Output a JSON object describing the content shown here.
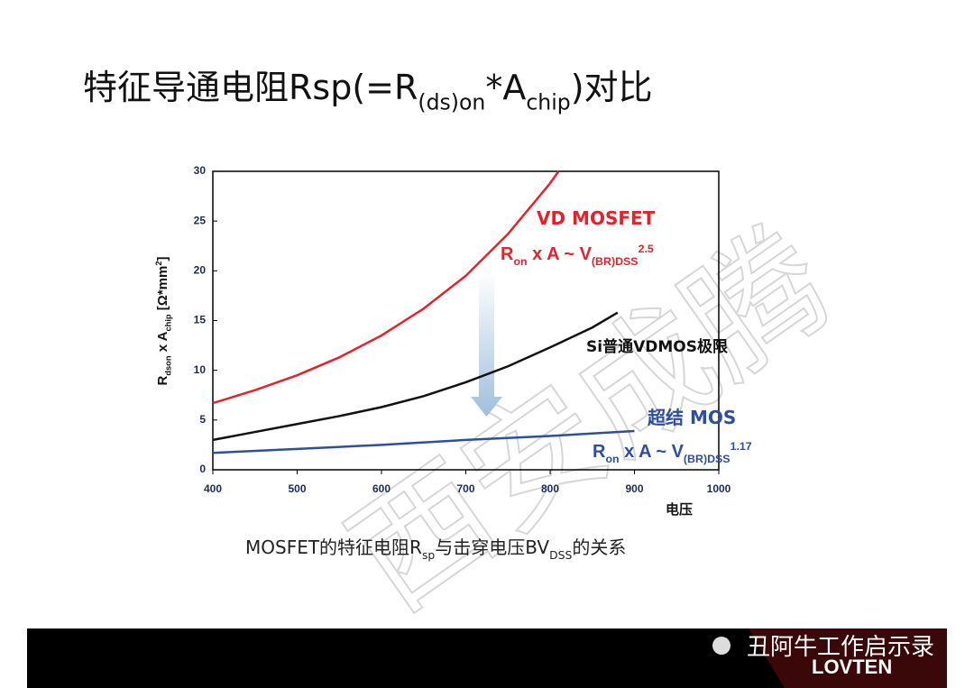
{
  "title": [
    {
      "text": "特征导通电阻Rsp(=R"
    },
    {
      "text": "(ds)on",
      "sub": true
    },
    {
      "text": "*A"
    },
    {
      "text": "chip",
      "sub": true
    },
    {
      "text": ")对比"
    }
  ],
  "chart_data": {
    "type": "line",
    "xlabel": "电压",
    "ylabel": [
      {
        "text": "R"
      },
      {
        "text": "dson",
        "sub": true
      },
      {
        "text": " x A"
      },
      {
        "text": "chip",
        "sub": true
      },
      {
        "text": " [Ω*mm"
      },
      {
        "text": "2",
        "sup": true
      },
      {
        "text": "]"
      }
    ],
    "xlim": [
      400,
      1000
    ],
    "xticks": [
      400,
      500,
      600,
      700,
      800,
      900,
      1000
    ],
    "ylim": [
      0,
      30
    ],
    "yticks": [
      0,
      5,
      10,
      15,
      20,
      25,
      30
    ],
    "series": [
      {
        "name": "VD MOSFET",
        "color": "#e0242c",
        "x": [
          400,
          450,
          500,
          550,
          600,
          650,
          700,
          750,
          800,
          810
        ],
        "values": [
          6.7,
          8,
          9.5,
          11.3,
          13.5,
          16.2,
          19.5,
          23.7,
          28.8,
          30
        ]
      },
      {
        "name": "Si普通VDMOS极限",
        "color": "#111111",
        "x": [
          400,
          450,
          500,
          550,
          600,
          650,
          700,
          750,
          800,
          850,
          880
        ],
        "values": [
          3,
          3.8,
          4.6,
          5.4,
          6.3,
          7.4,
          8.8,
          10.4,
          12.3,
          14.3,
          15.8
        ]
      },
      {
        "name": "超结 MOS",
        "color": "#2e4f9e",
        "x": [
          400,
          500,
          600,
          700,
          800,
          900
        ],
        "values": [
          1.7,
          2.1,
          2.5,
          3,
          3.4,
          3.9
        ]
      }
    ],
    "annotations": [
      [
        {
          "text": "R"
        },
        {
          "text": "on",
          "sub": true
        },
        {
          "text": " x A  ~ V"
        },
        {
          "text": "(BR)DSS",
          "sub": true
        },
        {
          "text": "2.5",
          "sup": true
        }
      ],
      [
        {
          "text": "R"
        },
        {
          "text": "on",
          "sub": true
        },
        {
          "text": " x A  ~ V"
        },
        {
          "text": "(BR)DSS",
          "sub": true
        },
        {
          "text": "1.17",
          "sup": true
        }
      ]
    ]
  },
  "caption": [
    {
      "text": "MOSFET的特征电阻R"
    },
    {
      "text": "sp",
      "sub": true
    },
    {
      "text": "与击穿电压BV"
    },
    {
      "text": "DSS",
      "sub": true
    },
    {
      "text": "的关系"
    }
  ],
  "watermark": "西安成腾",
  "footer": {
    "account": "丑阿牛工作启示录",
    "logo": "LOVTEN"
  }
}
